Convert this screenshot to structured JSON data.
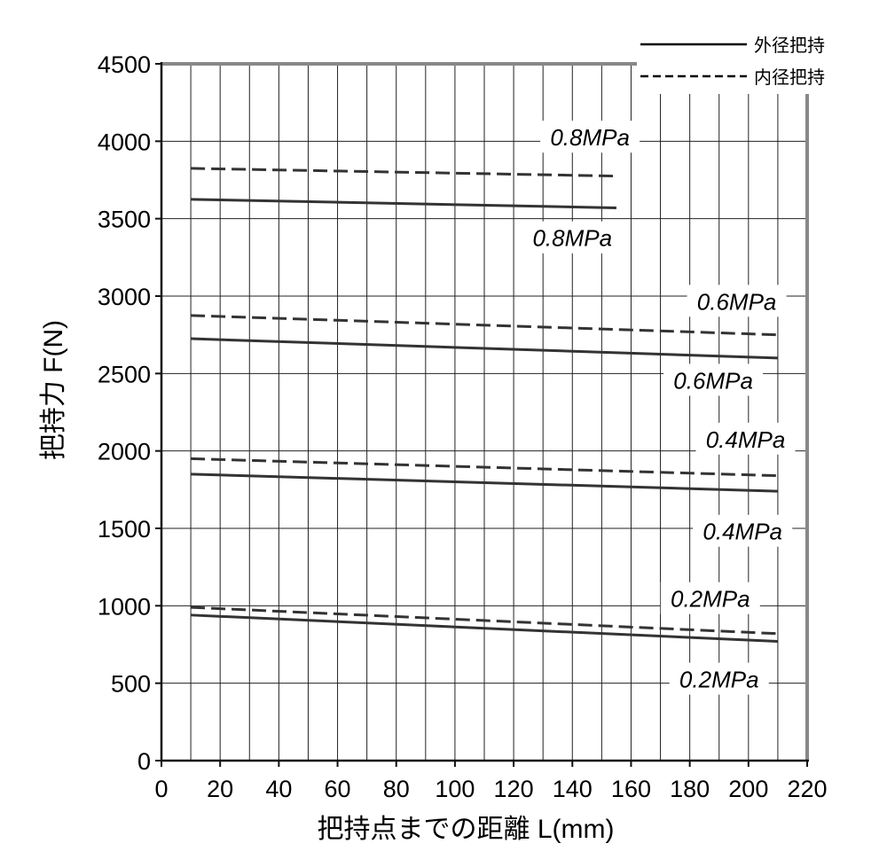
{
  "chart_data": {
    "type": "line",
    "title": "",
    "xlabel": "把持点までの距離 L(mm)",
    "ylabel": "把持力 F(N)",
    "xlim": [
      0,
      220
    ],
    "ylim": [
      0,
      4500
    ],
    "x_ticks": [
      0,
      20,
      40,
      60,
      80,
      100,
      120,
      140,
      160,
      180,
      200,
      220
    ],
    "y_ticks": [
      0,
      500,
      1000,
      1500,
      2000,
      2500,
      3000,
      3500,
      4000,
      4500
    ],
    "grid": "vertical lines every 10 mm, horizontal lines every 500 N",
    "legend": {
      "position": "top-right",
      "entries": [
        {
          "style": "solid",
          "label": "外径把持"
        },
        {
          "style": "dashed",
          "label": "内径把持"
        }
      ]
    },
    "series": [
      {
        "grip": "外径把持",
        "style": "solid",
        "pressure": "0.8MPa",
        "x": [
          10,
          155
        ],
        "y": [
          3625,
          3570
        ]
      },
      {
        "grip": "内径把持",
        "style": "dashed",
        "pressure": "0.8MPa",
        "x": [
          10,
          155
        ],
        "y": [
          3825,
          3775
        ]
      },
      {
        "grip": "外径把持",
        "style": "solid",
        "pressure": "0.6MPa",
        "x": [
          10,
          210
        ],
        "y": [
          2725,
          2600
        ]
      },
      {
        "grip": "内径把持",
        "style": "dashed",
        "pressure": "0.6MPa",
        "x": [
          10,
          210
        ],
        "y": [
          2875,
          2750
        ]
      },
      {
        "grip": "外径把持",
        "style": "solid",
        "pressure": "0.4MPa",
        "x": [
          10,
          210
        ],
        "y": [
          1850,
          1740
        ]
      },
      {
        "grip": "内径把持",
        "style": "dashed",
        "pressure": "0.4MPa",
        "x": [
          10,
          210
        ],
        "y": [
          1950,
          1840
        ]
      },
      {
        "grip": "外径把持",
        "style": "solid",
        "pressure": "0.2MPa",
        "x": [
          10,
          210
        ],
        "y": [
          940,
          770
        ]
      },
      {
        "grip": "内径把持",
        "style": "dashed",
        "pressure": "0.2MPa",
        "x": [
          10,
          210
        ],
        "y": [
          990,
          820
        ]
      }
    ],
    "annotations": [
      {
        "text": "0.8MPa",
        "series": "内径把持 0.8MPa",
        "x": 146,
        "y": 3995
      },
      {
        "text": "0.8MPa",
        "series": "外径把持 0.8MPa",
        "x": 140,
        "y": 3345
      },
      {
        "text": "0.6MPa",
        "series": "内径把持 0.6MPa",
        "x": 196,
        "y": 2935
      },
      {
        "text": "0.6MPa",
        "series": "外径把持 0.6MPa",
        "x": 188,
        "y": 2425
      },
      {
        "text": "0.4MPa",
        "series": "内径把持 0.4MPa",
        "x": 199,
        "y": 2045
      },
      {
        "text": "0.4MPa",
        "series": "外径把持 0.4MPa",
        "x": 198,
        "y": 1450
      },
      {
        "text": "0.2MPa",
        "series": "内径把持 0.2MPa",
        "x": 187,
        "y": 1015
      },
      {
        "text": "0.2MPa",
        "series": "外径把持 0.2MPa",
        "x": 190,
        "y": 495
      }
    ]
  }
}
